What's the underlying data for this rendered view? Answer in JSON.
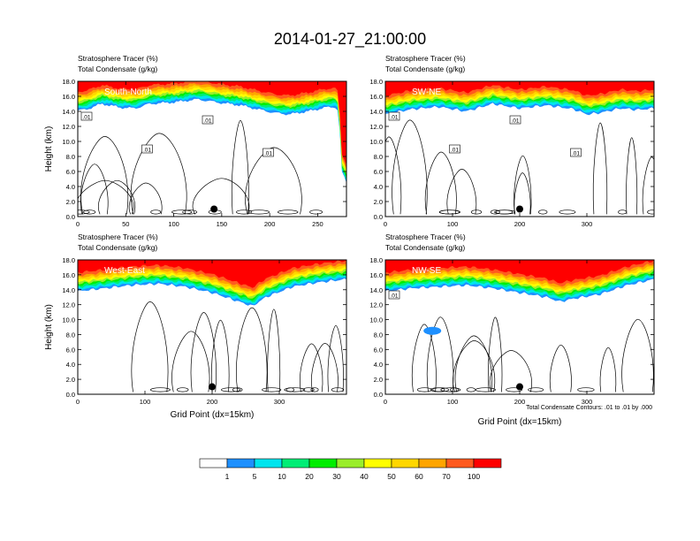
{
  "title": "2014-01-27_21:00:00",
  "colorbar": {
    "colors": [
      "#ffffff",
      "#1e90ff",
      "#00e5ee",
      "#00ee76",
      "#00ee00",
      "#9aee2b",
      "#ffff00",
      "#ffd700",
      "#ffa500",
      "#ff5a1f",
      "#ff0000"
    ],
    "labels": [
      "1",
      "5",
      "10",
      "20",
      "30",
      "40",
      "50",
      "60",
      "70",
      "100"
    ]
  },
  "chart_data": [
    {
      "type": "heatmap",
      "label_top": "Stratosphere Tracer   (%)",
      "label_bottom": "Total Condensate   (g/kg)",
      "panel_label": "South-North",
      "ylabel": "Height (km)",
      "xlabel": "",
      "xlim": [
        0,
        280
      ],
      "ylim": [
        0,
        18
      ],
      "xticks": [
        "0",
        "50",
        "100",
        "150",
        "200",
        "250"
      ],
      "xtick_values": [
        0,
        50,
        100,
        150,
        200,
        250
      ],
      "yticks": [
        "0.0",
        "2.0",
        "4.0",
        "6.0",
        "8.0",
        "10.0",
        "12.0",
        "14.0",
        "16.0",
        "18.0"
      ],
      "tracer_base_km": [
        [
          0,
          14.1
        ],
        [
          10,
          14.3
        ],
        [
          25,
          15.0
        ],
        [
          45,
          14.5
        ],
        [
          60,
          14.4
        ],
        [
          75,
          15.0
        ],
        [
          100,
          15.2
        ],
        [
          125,
          15.6
        ],
        [
          150,
          15.1
        ],
        [
          170,
          14.8
        ],
        [
          190,
          14.2
        ],
        [
          205,
          13.8
        ],
        [
          220,
          13.6
        ],
        [
          240,
          14.0
        ],
        [
          258,
          14.5
        ],
        [
          268,
          14.6
        ],
        [
          272,
          14.0
        ],
        [
          275,
          6.0
        ],
        [
          280,
          4.5
        ]
      ],
      "contour_labels": [
        ".01",
        ".01",
        ".01",
        ".01"
      ],
      "marker_x": 142,
      "marker_y_km": 1.0
    },
    {
      "type": "heatmap",
      "label_top": "Stratosphere Tracer   (%)",
      "label_bottom": "Total Condensate   (g/kg)",
      "panel_label": "SW-NE",
      "ylabel": "",
      "xlabel": "",
      "xlim": [
        0,
        400
      ],
      "ylim": [
        0,
        18
      ],
      "xticks": [
        "0",
        "100",
        "200",
        "300"
      ],
      "xtick_values": [
        0,
        100,
        200,
        300
      ],
      "yticks": [
        "0.0",
        "2.0",
        "4.0",
        "6.0",
        "8.0",
        "10.0",
        "12.0",
        "14.0",
        "16.0",
        "18.0"
      ],
      "tracer_base_km": [
        [
          0,
          13.6
        ],
        [
          40,
          14.3
        ],
        [
          80,
          14.6
        ],
        [
          120,
          14.0
        ],
        [
          160,
          15.0
        ],
        [
          200,
          14.4
        ],
        [
          240,
          14.8
        ],
        [
          280,
          14.3
        ],
        [
          300,
          13.6
        ],
        [
          320,
          13.8
        ],
        [
          350,
          14.4
        ],
        [
          375,
          14.2
        ],
        [
          400,
          14.4
        ]
      ],
      "contour_labels": [
        ".01",
        ".01",
        ".01",
        ".01"
      ],
      "marker_x": 200,
      "marker_y_km": 1.0
    },
    {
      "type": "heatmap",
      "label_top": "Stratosphere Tracer   (%)",
      "label_bottom": "Total Condensate   (g/kg)",
      "panel_label": "West-East",
      "ylabel": "Height (km)",
      "xlabel": "Grid Point (dx=15km)",
      "xlim": [
        0,
        400
      ],
      "ylim": [
        0,
        18
      ],
      "xticks": [
        "0",
        "100",
        "200",
        "300"
      ],
      "xtick_values": [
        0,
        100,
        200,
        300
      ],
      "yticks": [
        "0.0",
        "2.0",
        "4.0",
        "6.0",
        "8.0",
        "10.0",
        "12.0",
        "14.0",
        "16.0",
        "18.0"
      ],
      "tracer_base_km": [
        [
          0,
          13.8
        ],
        [
          40,
          14.2
        ],
        [
          80,
          14.6
        ],
        [
          120,
          14.8
        ],
        [
          160,
          14.4
        ],
        [
          200,
          13.6
        ],
        [
          240,
          12.4
        ],
        [
          260,
          11.8
        ],
        [
          280,
          13.0
        ],
        [
          320,
          14.4
        ],
        [
          360,
          15.0
        ],
        [
          400,
          15.4
        ]
      ],
      "contour_labels": [],
      "marker_x": 200,
      "marker_y_km": 1.0
    },
    {
      "type": "heatmap",
      "label_top": "Stratosphere Tracer   (%)",
      "label_bottom": "Total Condensate   (g/kg)",
      "panel_label": "NW-SE",
      "ylabel": "",
      "xlabel": "Grid Point (dx=15km)",
      "xlim": [
        0,
        400
      ],
      "ylim": [
        0,
        18
      ],
      "xticks": [
        "0",
        "100",
        "200",
        "300"
      ],
      "xtick_values": [
        0,
        100,
        200,
        300
      ],
      "yticks": [
        "0.0",
        "2.0",
        "4.0",
        "6.0",
        "8.0",
        "10.0",
        "12.0",
        "14.0",
        "16.0",
        "18.0"
      ],
      "tracer_base_km": [
        [
          0,
          13.8
        ],
        [
          40,
          14.2
        ],
        [
          80,
          14.4
        ],
        [
          120,
          14.6
        ],
        [
          160,
          14.2
        ],
        [
          200,
          13.6
        ],
        [
          240,
          13.0
        ],
        [
          260,
          12.4
        ],
        [
          280,
          12.8
        ],
        [
          320,
          13.4
        ],
        [
          360,
          14.6
        ],
        [
          400,
          15.4
        ]
      ],
      "contour_labels": [
        ".01"
      ],
      "marker_x": 200,
      "marker_y_km": 1.0,
      "footnote": "Total Condensate Contours: .01 to .01 by .000"
    }
  ]
}
